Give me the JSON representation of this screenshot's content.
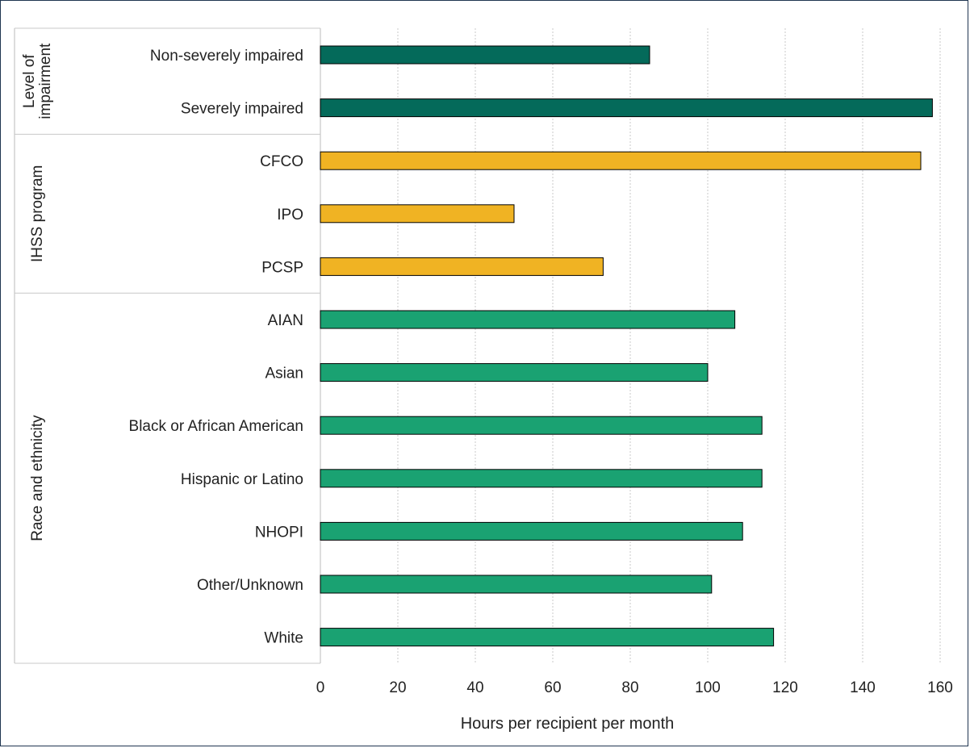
{
  "chart_data": {
    "type": "bar",
    "orientation": "horizontal",
    "xlabel": "Hours per recipient per month",
    "xlim": [
      0,
      160
    ],
    "xticks": [
      0,
      20,
      40,
      60,
      80,
      100,
      120,
      140,
      160
    ],
    "grid": true,
    "groups": [
      {
        "name": "Level of impairment",
        "name_lines": [
          "Level of",
          "impairment"
        ],
        "color": "#046a5a",
        "categories": [
          "Non-severely impaired",
          "Severely impaired"
        ],
        "values": [
          85,
          158
        ]
      },
      {
        "name": "IHSS program",
        "name_lines": [
          "IHSS program"
        ],
        "color": "#f0b323",
        "categories": [
          "CFCO",
          "IPO",
          "PCSP"
        ],
        "values": [
          155,
          50,
          73
        ]
      },
      {
        "name": "Race and ethnicity",
        "name_lines": [
          "Race and ethnicity"
        ],
        "color": "#1aa272",
        "categories": [
          "AIAN",
          "Asian",
          "Black or African American",
          "Hispanic or Latino",
          "NHOPI",
          "Other/Unknown",
          "White"
        ],
        "values": [
          107,
          100,
          114,
          114,
          109,
          101,
          117
        ]
      }
    ]
  }
}
